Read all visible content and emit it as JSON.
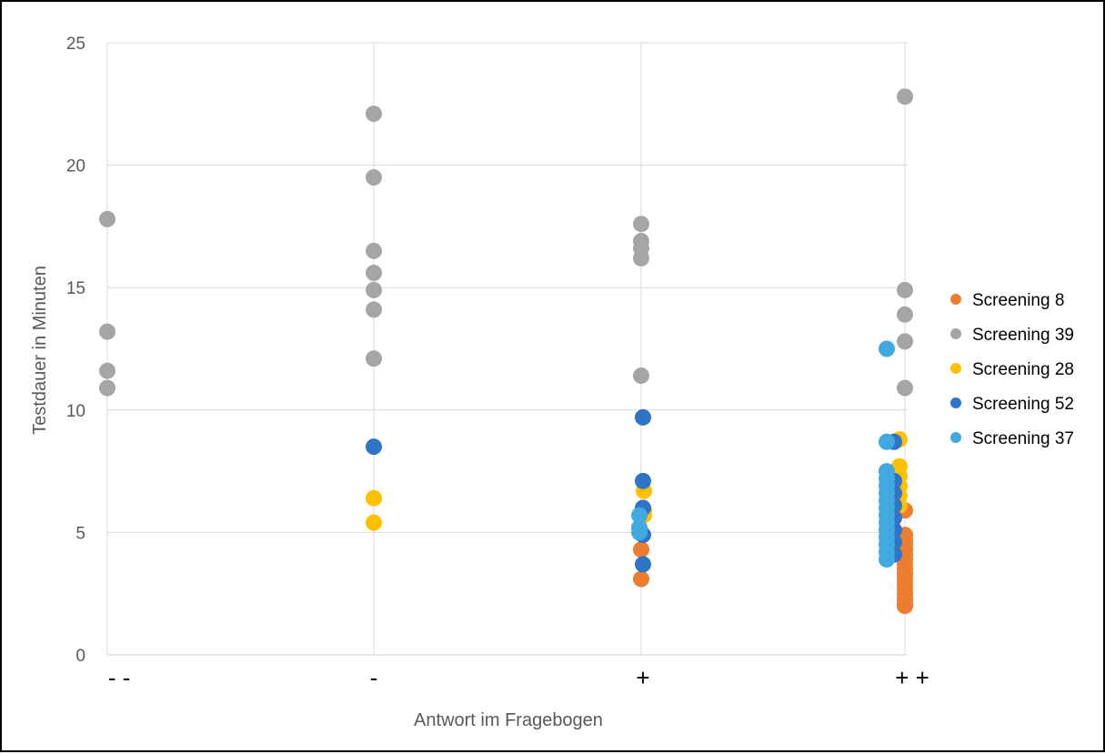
{
  "chart_data": {
    "type": "scatter",
    "title": "",
    "xlabel": "Antwort im Fragebogen",
    "ylabel": "Testdauer in Minuten",
    "categories": [
      "- -",
      "-",
      "+",
      "+ +"
    ],
    "ylim": [
      0,
      25
    ],
    "yticks": [
      "0",
      "5",
      "10",
      "15",
      "20",
      "25"
    ],
    "grid": true,
    "legend_position": "right",
    "series": [
      {
        "name": "Screening 8",
        "color": "#ED7D31",
        "points": [
          [
            3,
            5.9
          ],
          [
            3,
            4.9
          ],
          [
            3,
            4.7
          ],
          [
            3,
            4.5
          ],
          [
            3,
            4.3
          ],
          [
            3,
            4.1
          ],
          [
            3,
            3.9
          ],
          [
            3,
            3.7
          ],
          [
            3,
            3.5
          ],
          [
            3,
            3.3
          ],
          [
            3,
            3.1
          ],
          [
            3,
            2.9
          ],
          [
            3,
            2.7
          ],
          [
            3,
            2.5
          ],
          [
            3,
            2.3
          ],
          [
            3,
            2.1
          ],
          [
            3,
            2.0
          ],
          [
            2,
            4.3
          ],
          [
            2,
            3.1
          ]
        ]
      },
      {
        "name": "Screening 39",
        "color": "#A5A5A5",
        "points": [
          [
            0,
            17.8
          ],
          [
            0,
            13.2
          ],
          [
            0,
            11.6
          ],
          [
            0,
            10.9
          ],
          [
            1,
            22.1
          ],
          [
            1,
            19.5
          ],
          [
            1,
            16.5
          ],
          [
            1,
            15.6
          ],
          [
            1,
            14.9
          ],
          [
            1,
            14.1
          ],
          [
            1,
            12.1
          ],
          [
            2,
            17.6
          ],
          [
            2,
            16.9
          ],
          [
            2,
            16.6
          ],
          [
            2,
            16.2
          ],
          [
            2,
            11.4
          ],
          [
            3,
            22.8
          ],
          [
            3,
            14.9
          ],
          [
            3,
            13.9
          ],
          [
            3,
            12.8
          ],
          [
            3,
            10.9
          ]
        ]
      },
      {
        "name": "Screening 28",
        "color": "#FFC000",
        "points": [
          [
            1,
            6.4
          ],
          [
            1,
            5.4
          ],
          [
            2,
            6.7
          ],
          [
            2,
            5.9
          ],
          [
            2,
            5.7
          ],
          [
            3,
            8.8
          ],
          [
            3,
            7.7
          ],
          [
            3,
            7.3
          ],
          [
            3,
            6.9
          ],
          [
            3,
            6.5
          ],
          [
            3,
            6.1
          ]
        ]
      },
      {
        "name": "Screening 52",
        "color": "#2E75C8",
        "points": [
          [
            1,
            8.5
          ],
          [
            2,
            9.7
          ],
          [
            2,
            7.1
          ],
          [
            2,
            6.0
          ],
          [
            2,
            4.9
          ],
          [
            2,
            3.7
          ],
          [
            3,
            8.7
          ],
          [
            3,
            7.1
          ],
          [
            3,
            6.6
          ],
          [
            3,
            6.1
          ],
          [
            3,
            5.6
          ],
          [
            3,
            5.1
          ],
          [
            3,
            4.6
          ],
          [
            3,
            4.1
          ]
        ]
      },
      {
        "name": "Screening 37",
        "color": "#41A9DF",
        "points": [
          [
            2,
            5.7
          ],
          [
            2,
            5.2
          ],
          [
            2,
            5.0
          ],
          [
            3,
            12.5
          ],
          [
            3,
            8.7
          ],
          [
            3,
            7.5
          ],
          [
            3,
            7.2
          ],
          [
            3,
            6.9
          ],
          [
            3,
            6.6
          ],
          [
            3,
            6.3
          ],
          [
            3,
            6.0
          ],
          [
            3,
            5.7
          ],
          [
            3,
            5.4
          ],
          [
            3,
            5.1
          ],
          [
            3,
            4.8
          ],
          [
            3,
            4.5
          ],
          [
            3,
            4.2
          ],
          [
            3,
            3.9
          ]
        ]
      }
    ]
  }
}
